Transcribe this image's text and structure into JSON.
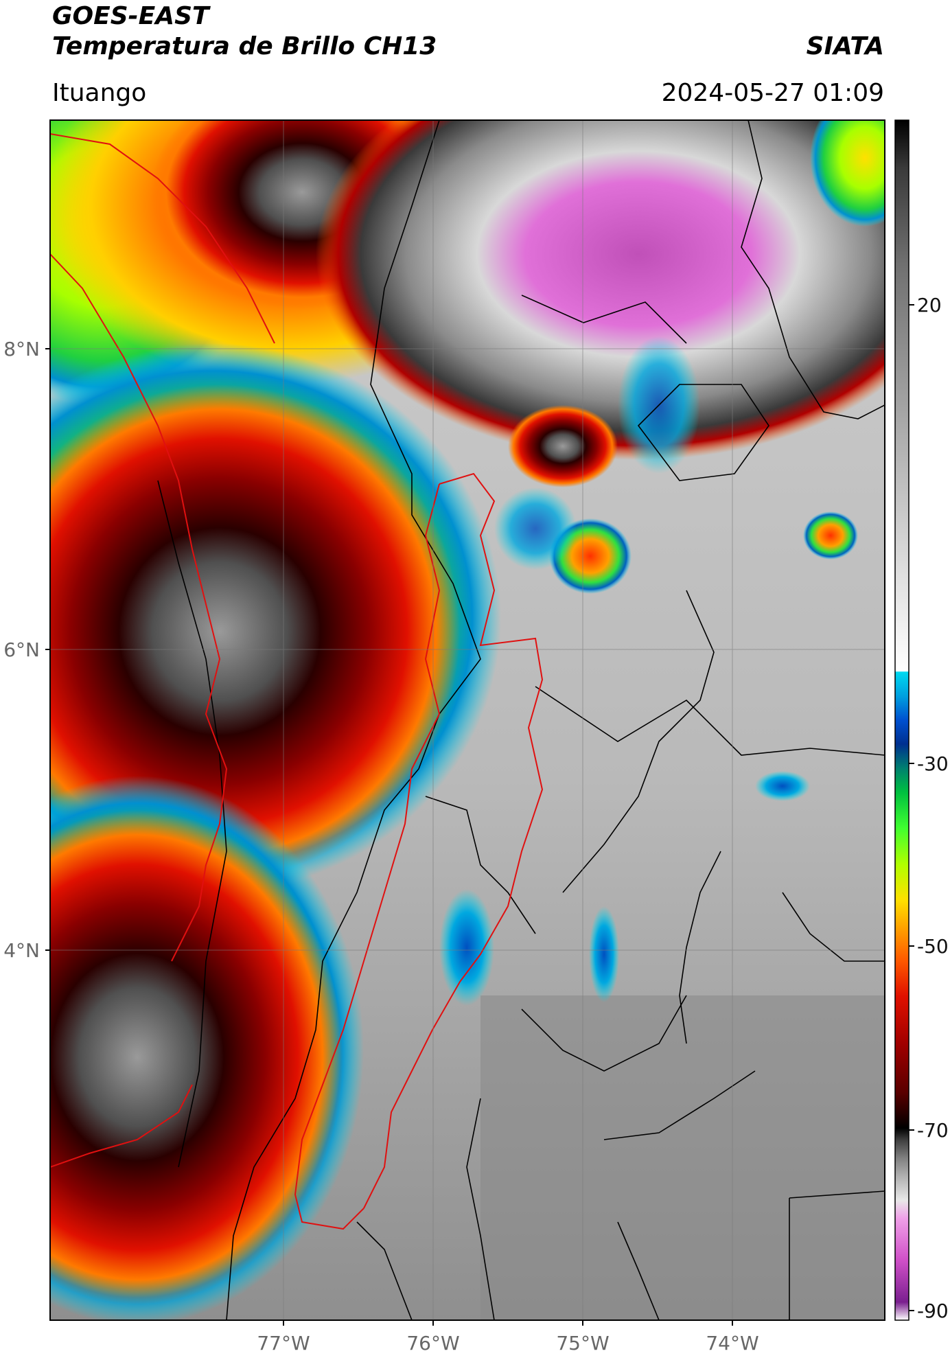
{
  "header": {
    "satellite": "GOES-EAST",
    "product": "Temperatura de Brillo CH13",
    "location": "Ituango",
    "brand": "SIATA",
    "datetime": "2024-05-27 01:09"
  },
  "axes": {
    "lat_ticks": [
      "8°N",
      "6°N",
      "4°N"
    ],
    "lon_ticks": [
      "77°W",
      "76°W",
      "75°W",
      "74°W"
    ]
  },
  "colorbar": {
    "ticks": [
      "20",
      "-30",
      "-50",
      "-70",
      "-90"
    ],
    "stops": [
      "#ffffff",
      "#7a1f8f",
      "#d050c8",
      "#f0a0e8",
      "#e8e8e8",
      "#b0b0b0",
      "#808080",
      "#404040",
      "#000000",
      "#5a0000",
      "#a00000",
      "#e01000",
      "#ff5a00",
      "#ffaa00",
      "#ffe000",
      "#b0ff00",
      "#40ff30",
      "#00c040",
      "#008070",
      "#003090",
      "#0050d0",
      "#00a0e0",
      "#00d8f0",
      "#ffffff",
      "#e0e0e0",
      "#a8a8a8",
      "#707070",
      "#3a3a3a",
      "#000000"
    ]
  },
  "colors": {
    "department_border": "#e01010",
    "municipal_border": "#000000",
    "grid": "#7a7a7a"
  }
}
